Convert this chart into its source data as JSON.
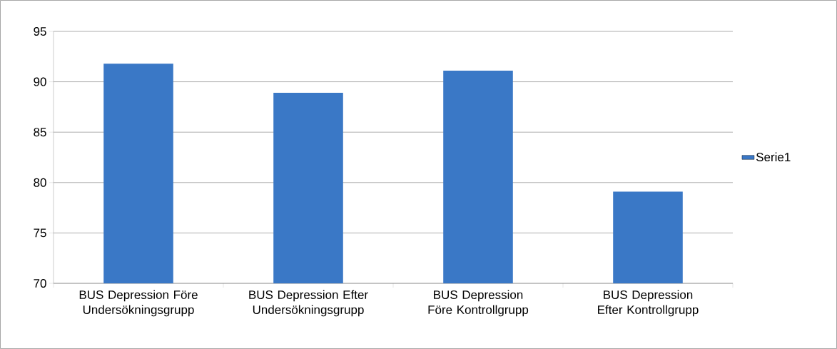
{
  "chart_data": {
    "type": "bar",
    "categories": [
      "BUS Depression Före Undersökningsgrupp",
      "BUS  Depression Efter Undersökningsgrupp",
      "BUS Depression Före Kontrollgrupp",
      "BUS Depression Efter Kontrollgrupp"
    ],
    "series": [
      {
        "name": "Serie1",
        "color": "#3a78c6",
        "values": [
          91.8,
          88.9,
          91.1,
          79.1
        ]
      }
    ],
    "ylim": [
      70,
      95
    ],
    "yticks": [
      70,
      75,
      80,
      85,
      90,
      95
    ],
    "grid": "y",
    "legend": "right"
  }
}
